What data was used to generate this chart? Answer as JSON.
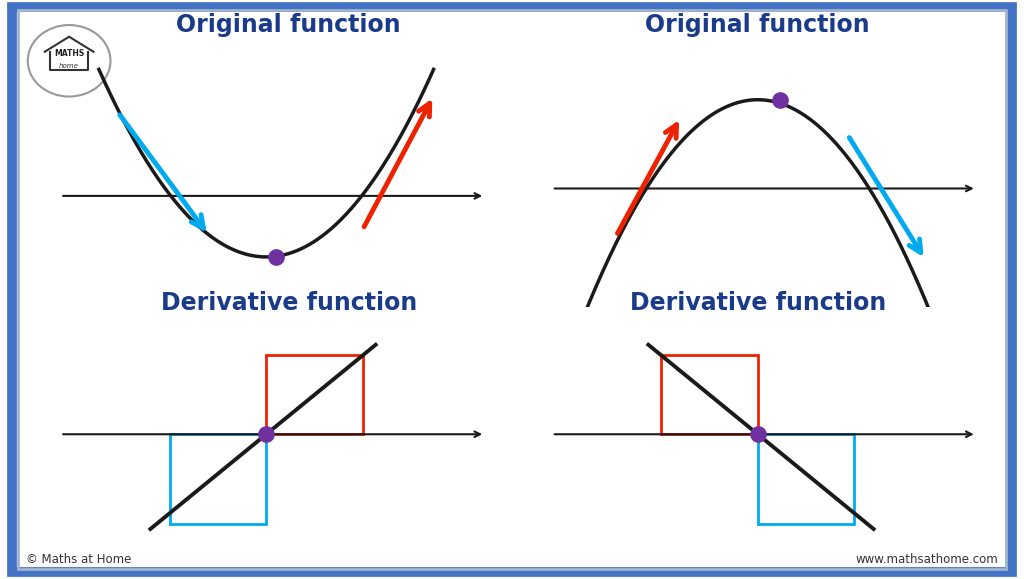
{
  "bg_color": "#ffffff",
  "border_color": "#4472c4",
  "border_inner_color": "#a0b4d0",
  "title_color": "#1a3a8a",
  "title1": "Original function",
  "title2": "Original function",
  "title3": "Derivative function",
  "title4": "Derivative function",
  "title_fontsize": 17,
  "curve_color": "#1a1a1a",
  "axis_color": "#1a1a1a",
  "dot_color": "#7030a0",
  "arrow_blue": "#00aaee",
  "arrow_red": "#ee2200",
  "box_red": "#ee2200",
  "box_blue": "#00aaee",
  "line_color": "#1a1a1a",
  "footer_left": "© Maths at Home",
  "footer_right": "www.mathsathome.com"
}
